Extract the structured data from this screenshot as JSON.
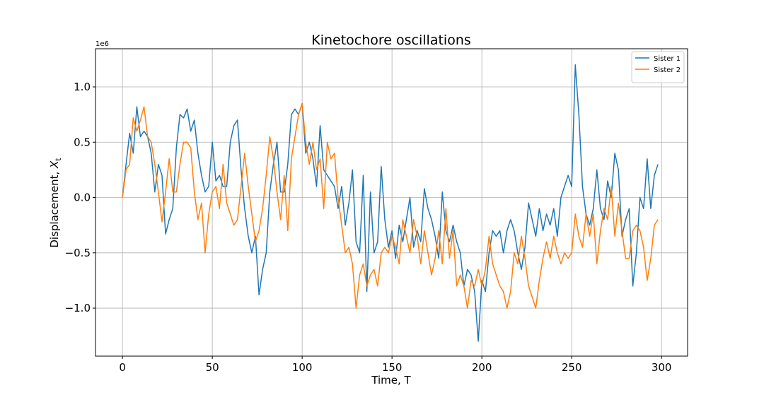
{
  "chart_data": {
    "type": "line",
    "title": "Kinetochore oscillations",
    "xlabel": "Time, T",
    "ylabel": {
      "text": "Displacement, ",
      "var": "X",
      "sub": "t"
    },
    "y_offset_label": "1e6",
    "xlim": [
      -15,
      314.5
    ],
    "ylim": [
      -1.434,
      1.345
    ],
    "xticks": [
      0,
      50,
      100,
      150,
      200,
      250,
      300
    ],
    "yticks": [
      {
        "value": -1,
        "label": "−1.0"
      },
      {
        "value": -0.5,
        "label": "−0.5"
      },
      {
        "value": 0,
        "label": "0.0"
      },
      {
        "value": 0.5,
        "label": "0.5"
      },
      {
        "value": 1,
        "label": "1.0"
      }
    ],
    "grid": true,
    "legend": "upper right",
    "x": [
      0,
      2,
      4,
      6,
      8,
      10,
      12,
      14,
      16,
      18,
      20,
      22,
      24,
      26,
      28,
      30,
      32,
      34,
      36,
      38,
      40,
      42,
      44,
      46,
      48,
      50,
      52,
      54,
      56,
      58,
      60,
      62,
      64,
      66,
      68,
      70,
      72,
      74,
      76,
      78,
      80,
      82,
      84,
      86,
      88,
      90,
      92,
      94,
      96,
      98,
      100,
      102,
      104,
      106,
      108,
      110,
      112,
      114,
      116,
      118,
      120,
      122,
      124,
      126,
      128,
      130,
      132,
      134,
      136,
      138,
      140,
      142,
      144,
      146,
      148,
      150,
      152,
      154,
      156,
      158,
      160,
      162,
      164,
      166,
      168,
      170,
      172,
      174,
      176,
      178,
      180,
      182,
      184,
      186,
      188,
      190,
      192,
      194,
      196,
      198,
      200,
      202,
      204,
      206,
      208,
      210,
      212,
      214,
      216,
      218,
      220,
      222,
      224,
      226,
      228,
      230,
      232,
      234,
      236,
      238,
      240,
      242,
      244,
      246,
      248,
      250,
      252,
      254,
      256,
      258,
      260,
      262,
      264,
      266,
      268,
      270,
      272,
      274,
      276,
      278,
      280,
      282,
      284,
      286,
      288,
      290,
      292,
      294,
      296,
      298
    ],
    "series": [
      {
        "name": "Sister 1",
        "color": "#1f77b4",
        "values": [
          0,
          0.3,
          0.58,
          0.4,
          0.82,
          0.55,
          0.6,
          0.55,
          0.4,
          0.05,
          0.3,
          0.2,
          -0.33,
          -0.2,
          -0.1,
          0.45,
          0.75,
          0.72,
          0.8,
          0.6,
          0.7,
          0.4,
          0.2,
          0.05,
          0.1,
          0.5,
          0.15,
          0.2,
          0.1,
          0.1,
          0.5,
          0.65,
          0.7,
          0.25,
          -0.1,
          -0.35,
          -0.5,
          -0.35,
          -0.88,
          -0.65,
          -0.5,
          0.05,
          0.3,
          0.5,
          0.05,
          0.05,
          0.3,
          0.75,
          0.8,
          0.75,
          0.85,
          0.4,
          0.5,
          0.35,
          0.1,
          0.65,
          0.25,
          0.2,
          0.15,
          0.1,
          -0.1,
          0.1,
          -0.25,
          -0.05,
          0.25,
          -0.4,
          -0.5,
          0.2,
          -0.85,
          0.05,
          -0.5,
          -0.4,
          0.28,
          -0.2,
          -0.45,
          -0.3,
          -0.55,
          -0.25,
          -0.4,
          -0.2,
          0,
          -0.45,
          -0.3,
          -0.4,
          0.08,
          -0.1,
          -0.2,
          -0.35,
          -0.55,
          0.05,
          -0.3,
          -0.4,
          -0.25,
          -0.4,
          -0.5,
          -0.8,
          -0.65,
          -0.7,
          -0.85,
          -1.3,
          -0.75,
          -0.85,
          -0.5,
          -0.3,
          -0.35,
          -0.3,
          -0.5,
          -0.3,
          -0.2,
          -0.3,
          -0.5,
          -0.65,
          -0.45,
          -0.05,
          -0.2,
          -0.35,
          -0.1,
          -0.3,
          -0.15,
          -0.25,
          -0.1,
          -0.35,
          0,
          0.1,
          0.2,
          0.1,
          1.2,
          0.75,
          0.1,
          -0.15,
          -0.25,
          -0.1,
          0.25,
          -0.1,
          -0.2,
          0.15,
          0,
          0.4,
          0.25,
          -0.35,
          -0.2,
          -0.1,
          -0.8,
          -0.5,
          0,
          -0.1,
          0.35,
          -0.1,
          0.2,
          0.3
        ]
      },
      {
        "name": "Sister 2",
        "color": "#ff7f0e",
        "values": [
          0,
          0.25,
          0.3,
          0.72,
          0.6,
          0.7,
          0.82,
          0.55,
          0.5,
          0.3,
          0.05,
          -0.22,
          0.05,
          0.35,
          0.05,
          0.05,
          0.3,
          0.5,
          0.5,
          0.45,
          0.05,
          -0.2,
          -0.05,
          -0.5,
          -0.15,
          0.05,
          0.1,
          -0.1,
          0.3,
          -0.05,
          -0.15,
          -0.25,
          -0.2,
          0.1,
          0.4,
          0.1,
          -0.15,
          -0.4,
          -0.3,
          -0.1,
          0.2,
          0.55,
          0.35,
          0.05,
          -0.2,
          0.2,
          -0.3,
          0.35,
          0.55,
          0.75,
          0.85,
          0.5,
          0.3,
          0.5,
          0.25,
          0.35,
          -0.1,
          0.5,
          0.35,
          0.4,
          0,
          -0.25,
          -0.5,
          -0.45,
          -0.6,
          -1,
          -0.7,
          -0.6,
          -0.8,
          -0.7,
          -0.65,
          -0.8,
          -0.5,
          -0.45,
          -0.5,
          -0.35,
          -0.45,
          -0.6,
          -0.2,
          -0.35,
          -0.5,
          -0.2,
          -0.35,
          -0.6,
          -0.3,
          -0.5,
          -0.7,
          -0.55,
          -0.3,
          -0.6,
          -0.1,
          -0.55,
          -0.3,
          -0.8,
          -0.7,
          -0.8,
          -1,
          -0.75,
          -0.8,
          -0.65,
          -0.8,
          -0.65,
          -0.35,
          -0.6,
          -0.7,
          -0.8,
          -0.85,
          -1,
          -0.85,
          -0.5,
          -0.6,
          -0.35,
          -0.55,
          -0.8,
          -0.9,
          -1,
          -0.75,
          -0.55,
          -0.4,
          -0.55,
          -0.35,
          -0.5,
          -0.6,
          -0.5,
          -0.55,
          -0.5,
          -0.15,
          -0.35,
          -0.45,
          -0.15,
          -0.35,
          -0.15,
          -0.6,
          -0.3,
          -0.1,
          -0.2,
          0.1,
          -0.35,
          -0.05,
          -0.3,
          -0.55,
          -0.55,
          -0.3,
          -0.25,
          -0.3,
          -0.45,
          -0.75,
          -0.55,
          -0.25,
          -0.2
        ]
      }
    ]
  }
}
